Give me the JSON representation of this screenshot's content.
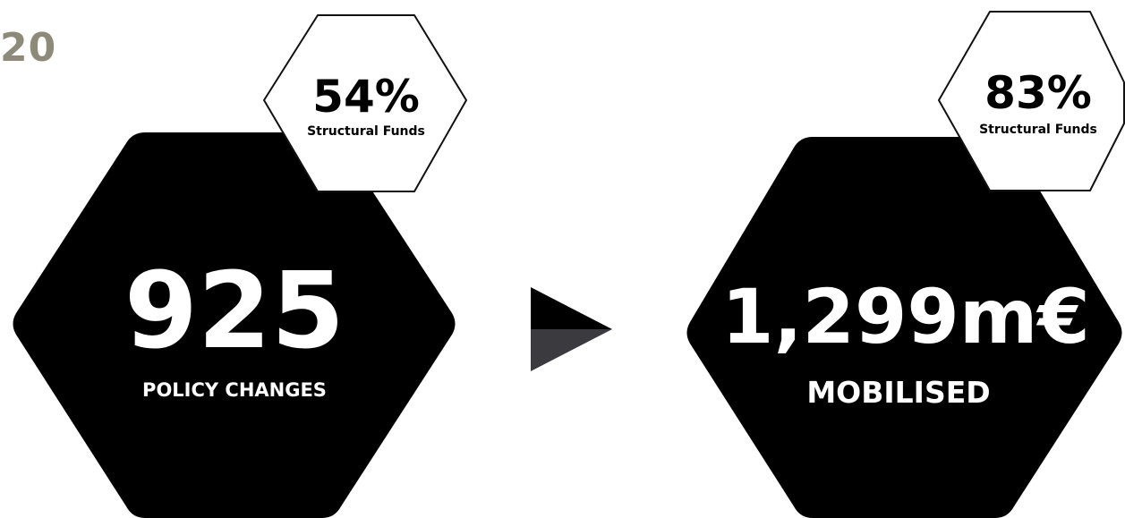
{
  "corner_label": "20",
  "left_group": {
    "main_value": "925",
    "main_caption": "POLICY CHANGES",
    "badge_value": "54%",
    "badge_caption": "Structural Funds"
  },
  "right_group": {
    "main_value": "1,299m€",
    "main_caption": "MOBILISED",
    "badge_value": "83%",
    "badge_caption": "Structural Funds"
  },
  "colors": {
    "hex_fill": "#000000",
    "badge_fill": "#ffffff",
    "badge_stroke": "#111111",
    "arrow_top": "#000000",
    "arrow_bottom": "#3b3a3f",
    "corner_label": "#8e8a79"
  },
  "icons": {
    "arrow": "right-arrow-icon"
  }
}
